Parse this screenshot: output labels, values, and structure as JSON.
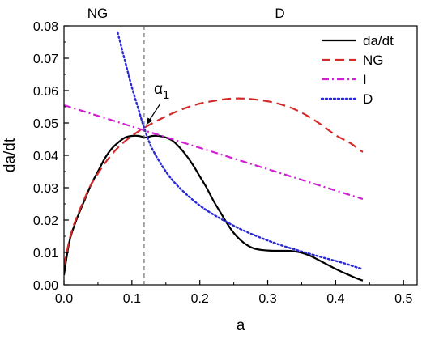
{
  "chart_data": {
    "type": "line",
    "xlabel": "a",
    "ylabel": "da/dt",
    "xlim": [
      0.0,
      0.52
    ],
    "ylim": [
      0.0,
      0.08
    ],
    "x_ticks": [
      "0.0",
      "0.1",
      "0.2",
      "0.3",
      "0.4",
      "0.5"
    ],
    "y_ticks": [
      "0.00",
      "0.01",
      "0.02",
      "0.03",
      "0.04",
      "0.05",
      "0.06",
      "0.07",
      "0.08"
    ],
    "grid": false,
    "legend_position": "top-right",
    "regions": [
      {
        "label": "NG",
        "x_from": 0.0,
        "x_to": 0.118
      },
      {
        "label": "D",
        "x_from": 0.118,
        "x_to": 0.52
      }
    ],
    "divider_x": 0.118,
    "annotations": [
      {
        "text": "α",
        "subscript": "1",
        "x": 0.118,
        "y": 0.0485
      }
    ],
    "series": [
      {
        "name": "da/dt",
        "color": "#000000",
        "style": "solid",
        "x": [
          0.0,
          0.005,
          0.01,
          0.02,
          0.03,
          0.04,
          0.05,
          0.06,
          0.07,
          0.08,
          0.09,
          0.1,
          0.11,
          0.12,
          0.13,
          0.14,
          0.15,
          0.16,
          0.17,
          0.18,
          0.19,
          0.2,
          0.21,
          0.22,
          0.23,
          0.24,
          0.25,
          0.26,
          0.27,
          0.28,
          0.29,
          0.3,
          0.31,
          0.32,
          0.33,
          0.34,
          0.35,
          0.36,
          0.37,
          0.38,
          0.39,
          0.4,
          0.41,
          0.42,
          0.43,
          0.44
        ],
        "y": [
          0.003,
          0.01,
          0.015,
          0.021,
          0.026,
          0.031,
          0.035,
          0.039,
          0.042,
          0.044,
          0.0455,
          0.046,
          0.046,
          0.0455,
          0.046,
          0.046,
          0.0455,
          0.0445,
          0.0425,
          0.04,
          0.037,
          0.0335,
          0.03,
          0.026,
          0.0225,
          0.019,
          0.016,
          0.0138,
          0.0122,
          0.0112,
          0.0108,
          0.0106,
          0.0105,
          0.0105,
          0.0105,
          0.0103,
          0.0099,
          0.0092,
          0.0082,
          0.0071,
          0.006,
          0.0049,
          0.0039,
          0.003,
          0.0021,
          0.0013
        ]
      },
      {
        "name": "NG",
        "color": "#d42a2a",
        "style": "dashed",
        "x": [
          0.0,
          0.01,
          0.02,
          0.03,
          0.04,
          0.06,
          0.08,
          0.1,
          0.118,
          0.14,
          0.16,
          0.18,
          0.2,
          0.22,
          0.245,
          0.27,
          0.3,
          0.32,
          0.34,
          0.36,
          0.38,
          0.4,
          0.42,
          0.44
        ],
        "y": [
          0.006,
          0.0155,
          0.0215,
          0.0265,
          0.031,
          0.0375,
          0.0425,
          0.046,
          0.0485,
          0.051,
          0.053,
          0.0547,
          0.056,
          0.0568,
          0.0575,
          0.0575,
          0.0567,
          0.0557,
          0.0542,
          0.052,
          0.0493,
          0.0462,
          0.044,
          0.041
        ]
      },
      {
        "name": "I",
        "color": "#d020d0",
        "style": "dash-dot",
        "x": [
          0.0,
          0.44
        ],
        "y": [
          0.0555,
          0.0265
        ]
      },
      {
        "name": "D",
        "color": "#2a2ad4",
        "style": "dotted",
        "x": [
          0.079,
          0.09,
          0.1,
          0.11,
          0.118,
          0.13,
          0.15,
          0.17,
          0.2,
          0.23,
          0.26,
          0.29,
          0.32,
          0.35,
          0.38,
          0.41,
          0.44
        ],
        "y": [
          0.078,
          0.069,
          0.061,
          0.054,
          0.0485,
          0.042,
          0.035,
          0.03,
          0.0245,
          0.0205,
          0.0172,
          0.0145,
          0.0122,
          0.0103,
          0.0085,
          0.0068,
          0.0048
        ]
      }
    ]
  }
}
